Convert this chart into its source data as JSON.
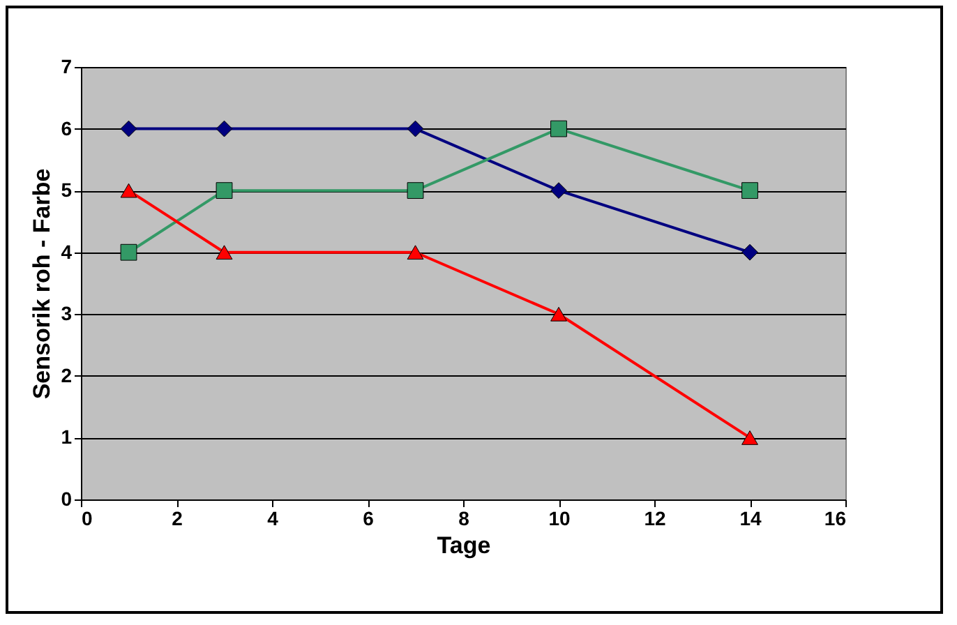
{
  "chart_data": {
    "type": "line",
    "xlabel": "Tage",
    "ylabel": "Sensorik roh - Farbe",
    "xlim": [
      0,
      16
    ],
    "xticks": [
      0,
      2,
      4,
      6,
      8,
      10,
      12,
      14,
      16
    ],
    "ylim": [
      0,
      7
    ],
    "yticks": [
      0,
      1,
      2,
      3,
      4,
      5,
      6,
      7
    ],
    "grid": "y",
    "line_style": "solid",
    "series": [
      {
        "color": "#000080",
        "marker": "diamond",
        "x": [
          1,
          3,
          7,
          10,
          14
        ],
        "values": [
          6,
          6,
          6,
          5,
          4
        ]
      },
      {
        "color": "#339966",
        "marker": "square",
        "x": [
          1,
          3,
          7,
          10,
          14
        ],
        "values": [
          4,
          5,
          5,
          6,
          5
        ]
      },
      {
        "color": "#ff0000",
        "marker": "triangle",
        "x": [
          1,
          3,
          7,
          10,
          14
        ],
        "values": [
          5,
          4,
          4,
          3,
          1
        ]
      }
    ]
  }
}
